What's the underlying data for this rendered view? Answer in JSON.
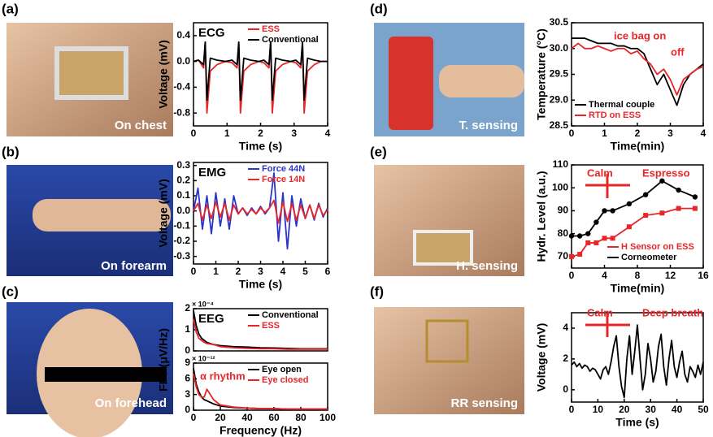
{
  "panels": [
    {
      "label": "(a)",
      "caption": "On chest"
    },
    {
      "label": "(b)",
      "caption": "On forearm"
    },
    {
      "label": "(c)",
      "caption": "On forehead"
    },
    {
      "label": "(d)",
      "caption": "T. sensing"
    },
    {
      "label": "(e)",
      "caption": "H. sensing"
    },
    {
      "label": "(f)",
      "caption": "RR sensing"
    }
  ],
  "chart_data": [
    {
      "type": "line",
      "title": "ECG",
      "xlabel": "Time (s)",
      "ylabel": "Voltage (mV)",
      "xlim": [
        0,
        4
      ],
      "xticks": [
        0,
        1,
        2,
        3,
        4
      ],
      "ylim": [
        -1.0,
        0.6
      ],
      "yticks": [
        {
          "value": -0.8,
          "label": "-0.8"
        },
        {
          "value": -0.4,
          "label": "-0.4"
        },
        {
          "value": 0,
          "label": "0.0"
        },
        0.4
      ],
      "legend": "upper right",
      "x": [
        0,
        0.15,
        0.3,
        0.35,
        0.4,
        0.5,
        0.7,
        0.95,
        1.15,
        1.3,
        1.35,
        1.4,
        1.5,
        1.7,
        1.95,
        2.1,
        2.25,
        2.3,
        2.35,
        2.45,
        2.65,
        2.9,
        3.05,
        3.2,
        3.25,
        3.3,
        3.4,
        3.6,
        3.8,
        4
      ],
      "series": [
        {
          "name": "ESS",
          "color": "#e8262a",
          "values": [
            0,
            0.02,
            -0.1,
            0.3,
            -0.8,
            -0.15,
            -0.05,
            0,
            -0.02,
            -0.1,
            0.3,
            -0.8,
            -0.15,
            -0.05,
            0,
            -0.02,
            -0.1,
            0.3,
            -0.8,
            -0.15,
            -0.05,
            0,
            -0.02,
            -0.1,
            0.3,
            -0.8,
            -0.15,
            -0.05,
            0,
            0
          ]
        },
        {
          "name": "Conventional",
          "color": "#000000",
          "values": [
            0,
            0.02,
            -0.05,
            0.3,
            -0.6,
            0.05,
            0.02,
            0,
            0.02,
            -0.05,
            0.3,
            -0.6,
            0.05,
            0.02,
            0,
            0.02,
            -0.05,
            0.3,
            -0.6,
            0.05,
            0.02,
            0,
            0.02,
            -0.05,
            0.3,
            -0.6,
            0.05,
            0.02,
            0,
            0
          ]
        }
      ]
    },
    {
      "type": "line",
      "title": "EMG",
      "xlabel": "Time (s)",
      "ylabel": "Voltage (mV)",
      "xlim": [
        0,
        6
      ],
      "xticks": [
        0,
        1,
        2,
        3,
        4,
        5,
        6
      ],
      "ylim": [
        -0.35,
        0.32
      ],
      "yticks": [
        -0.3,
        -0.2,
        -0.1,
        {
          "value": 0,
          "label": "0.0"
        },
        0.1,
        0.2,
        0.3
      ],
      "legend": "upper right",
      "x": [
        0,
        0.2,
        0.4,
        0.6,
        0.8,
        1,
        1.2,
        1.4,
        1.6,
        1.8,
        2,
        2.2,
        2.4,
        2.6,
        2.8,
        3,
        3.2,
        3.4,
        3.6,
        3.8,
        4,
        4.2,
        4.4,
        4.6,
        4.8,
        5,
        5.2,
        5.4,
        5.6,
        5.8,
        6
      ],
      "series": [
        {
          "name": "Force 44N",
          "color": "#2b35c9",
          "values": [
            0,
            0.15,
            -0.12,
            0.1,
            -0.15,
            0.12,
            -0.1,
            0.08,
            -0.12,
            0.1,
            -0.02,
            0.02,
            -0.03,
            0.02,
            -0.02,
            0.03,
            -0.02,
            0.02,
            0.25,
            -0.2,
            0.12,
            -0.25,
            0.1,
            -0.1,
            0.08,
            -0.05,
            0.04,
            -0.06,
            0.05,
            -0.04,
            0.02
          ]
        },
        {
          "name": "Force 14N",
          "color": "#e8262a",
          "values": [
            0,
            0.05,
            -0.06,
            0.04,
            -0.05,
            0.06,
            -0.04,
            0.05,
            -0.06,
            0.04,
            -0.02,
            0.02,
            -0.02,
            0.01,
            -0.02,
            0.02,
            -0.01,
            0.02,
            0.07,
            -0.08,
            0.06,
            -0.07,
            0.05,
            -0.06,
            0.04,
            -0.05,
            0.04,
            -0.05,
            0.04,
            -0.03,
            0.01
          ]
        }
      ]
    },
    {
      "type": "line",
      "title": "EEG",
      "ylabel": "FFT (μV/Hz)",
      "y_multiplier": "× 10⁻⁴",
      "xlim": [
        0,
        100
      ],
      "ylim": [
        0,
        2
      ],
      "yticks": [
        0,
        1,
        2
      ],
      "legend": "upper right",
      "x": [
        0,
        2,
        4,
        6,
        8,
        10,
        15,
        20,
        30,
        40,
        50,
        60,
        70,
        80,
        90,
        100
      ],
      "series": [
        {
          "name": "Conventional",
          "color": "#000000",
          "values": [
            1.9,
            1.2,
            0.8,
            0.6,
            0.5,
            0.4,
            0.3,
            0.25,
            0.2,
            0.18,
            0.15,
            0.14,
            0.12,
            0.1,
            0.1,
            0.1
          ]
        },
        {
          "name": "ESS",
          "color": "#e8262a",
          "values": [
            1.5,
            0.9,
            0.6,
            0.5,
            0.4,
            0.35,
            0.3,
            0.2,
            0.15,
            0.12,
            0.1,
            0.1,
            0.08,
            0.08,
            0.08,
            0.08
          ]
        }
      ]
    },
    {
      "type": "line",
      "xlabel": "Frequency (Hz)",
      "y_multiplier": "× 10⁻¹²",
      "xlim": [
        0,
        100
      ],
      "xticks": [
        0,
        20,
        40,
        60,
        80,
        100
      ],
      "ylim": [
        0,
        9
      ],
      "yticks": [
        0,
        3,
        6,
        9
      ],
      "legend": "upper right",
      "annotations": [
        {
          "text": "α rhythm",
          "color": "#e8262a"
        }
      ],
      "x": [
        0,
        2,
        4,
        6,
        8,
        10,
        15,
        20,
        30,
        40,
        50,
        60,
        70,
        80,
        90,
        100
      ],
      "series": [
        {
          "name": "Eye open",
          "color": "#000000",
          "values": [
            8,
            5,
            3.5,
            2.5,
            2,
            1.8,
            1.2,
            0.8,
            0.5,
            0.4,
            0.3,
            0.3,
            0.2,
            0.2,
            0.2,
            0.2
          ]
        },
        {
          "name": "Eye closed",
          "color": "#e8262a",
          "values": [
            7,
            4.5,
            3,
            2.5,
            2.5,
            4,
            2,
            1,
            0.6,
            0.4,
            0.3,
            0.3,
            0.2,
            0.2,
            0.2,
            0.2
          ]
        }
      ]
    },
    {
      "type": "line",
      "xlabel": "Time(min)",
      "ylabel": "Temperature (°C)",
      "xlim": [
        0,
        4
      ],
      "xticks": [
        0,
        1,
        2,
        3,
        4
      ],
      "ylim": [
        28.5,
        30.5
      ],
      "yticks": [
        28.5,
        {
          "value": 29,
          "label": "29.0"
        },
        29.5,
        {
          "value": 30,
          "label": "30.0"
        },
        30.5
      ],
      "legend": "lower left",
      "annotations": [
        {
          "text": "ice bag on",
          "color": "#e8262a"
        },
        {
          "text": "off",
          "color": "#e8262a"
        }
      ],
      "x": [
        0,
        0.2,
        0.4,
        0.6,
        0.8,
        1,
        1.2,
        1.4,
        1.6,
        1.8,
        2,
        2.2,
        2.4,
        2.6,
        2.8,
        3,
        3.2,
        3.4,
        3.6,
        3.8,
        4
      ],
      "series": [
        {
          "name": "Thermal couple",
          "color": "#000000",
          "values": [
            30.2,
            30.2,
            30.2,
            30.15,
            30.1,
            30.1,
            30.1,
            30.05,
            30.05,
            30,
            30,
            29.9,
            29.6,
            29.3,
            29.5,
            29.2,
            28.9,
            29.3,
            29.5,
            29.6,
            29.7
          ]
        },
        {
          "name": "RTD on ESS",
          "color": "#e8262a",
          "values": [
            30,
            30.1,
            30,
            30,
            30.05,
            30,
            29.95,
            30,
            30,
            29.9,
            29.95,
            29.8,
            29.7,
            29.5,
            29.6,
            29.4,
            29.1,
            29.4,
            29.5,
            29.6,
            29.65
          ]
        }
      ]
    },
    {
      "type": "line",
      "xlabel": "Time(min)",
      "ylabel": "Hydr. Level (a.u.)",
      "xlim": [
        0,
        16
      ],
      "xticks": [
        0,
        4,
        8,
        12,
        16
      ],
      "ylim": [
        65,
        110
      ],
      "yticks": [
        70,
        80,
        90,
        100,
        110
      ],
      "legend": "lower right",
      "annotations": [
        {
          "text": "Calm",
          "color": "#e8262a"
        },
        {
          "text": "Espresso",
          "color": "#e8262a"
        }
      ],
      "x": [
        0,
        1,
        2,
        3,
        4,
        5,
        7,
        9,
        11,
        13,
        15
      ],
      "series": [
        {
          "name": "H Sensor on ESS",
          "color": "#e8262a",
          "marker": "square",
          "values": [
            70,
            71,
            76,
            76,
            78,
            78,
            83,
            88,
            89,
            91,
            91
          ]
        },
        {
          "name": "Corneometer",
          "color": "#000000",
          "marker": "circle",
          "values": [
            79,
            79,
            80,
            85,
            90,
            90,
            93,
            97,
            103,
            99,
            96
          ]
        }
      ]
    },
    {
      "type": "line",
      "xlabel": "Time (s)",
      "ylabel": "Voltage (mV)",
      "xlim": [
        0,
        50
      ],
      "xticks": [
        0,
        10,
        20,
        30,
        40,
        50
      ],
      "ylim": [
        -0.8,
        5
      ],
      "yticks": [
        0,
        2,
        4
      ],
      "annotations": [
        {
          "text": "Calm",
          "color": "#e8262a"
        },
        {
          "text": "Deep breath",
          "color": "#e8262a"
        }
      ],
      "x": [
        0,
        1,
        2,
        3,
        4,
        5,
        6,
        7,
        8,
        9,
        10,
        11,
        12,
        13,
        14,
        15,
        16,
        17,
        18,
        19,
        20,
        21,
        22,
        23,
        24,
        25,
        26,
        27,
        28,
        29,
        30,
        31,
        32,
        33,
        34,
        35,
        36,
        37,
        38,
        39,
        40,
        41,
        42,
        43,
        44,
        45,
        46,
        47,
        48,
        49,
        50
      ],
      "series": [
        {
          "color": "#000000",
          "values": [
            1.6,
            1.8,
            1.5,
            1.7,
            1.4,
            1.6,
            1.5,
            1.2,
            1.4,
            1.3,
            1.0,
            0.7,
            1.3,
            1.5,
            1.0,
            1.8,
            2.8,
            3.5,
            1.5,
            0.2,
            -0.5,
            2,
            3.5,
            1,
            2.5,
            4.2,
            2,
            0,
            1,
            3,
            2,
            0.5,
            1.2,
            2.8,
            3.6,
            1.5,
            0.3,
            2,
            3.2,
            1.5,
            0.8,
            1.8,
            2.5,
            1,
            0.5,
            1.5,
            1.2,
            0.8,
            1.6,
            1.0,
            1.8
          ]
        }
      ]
    }
  ]
}
